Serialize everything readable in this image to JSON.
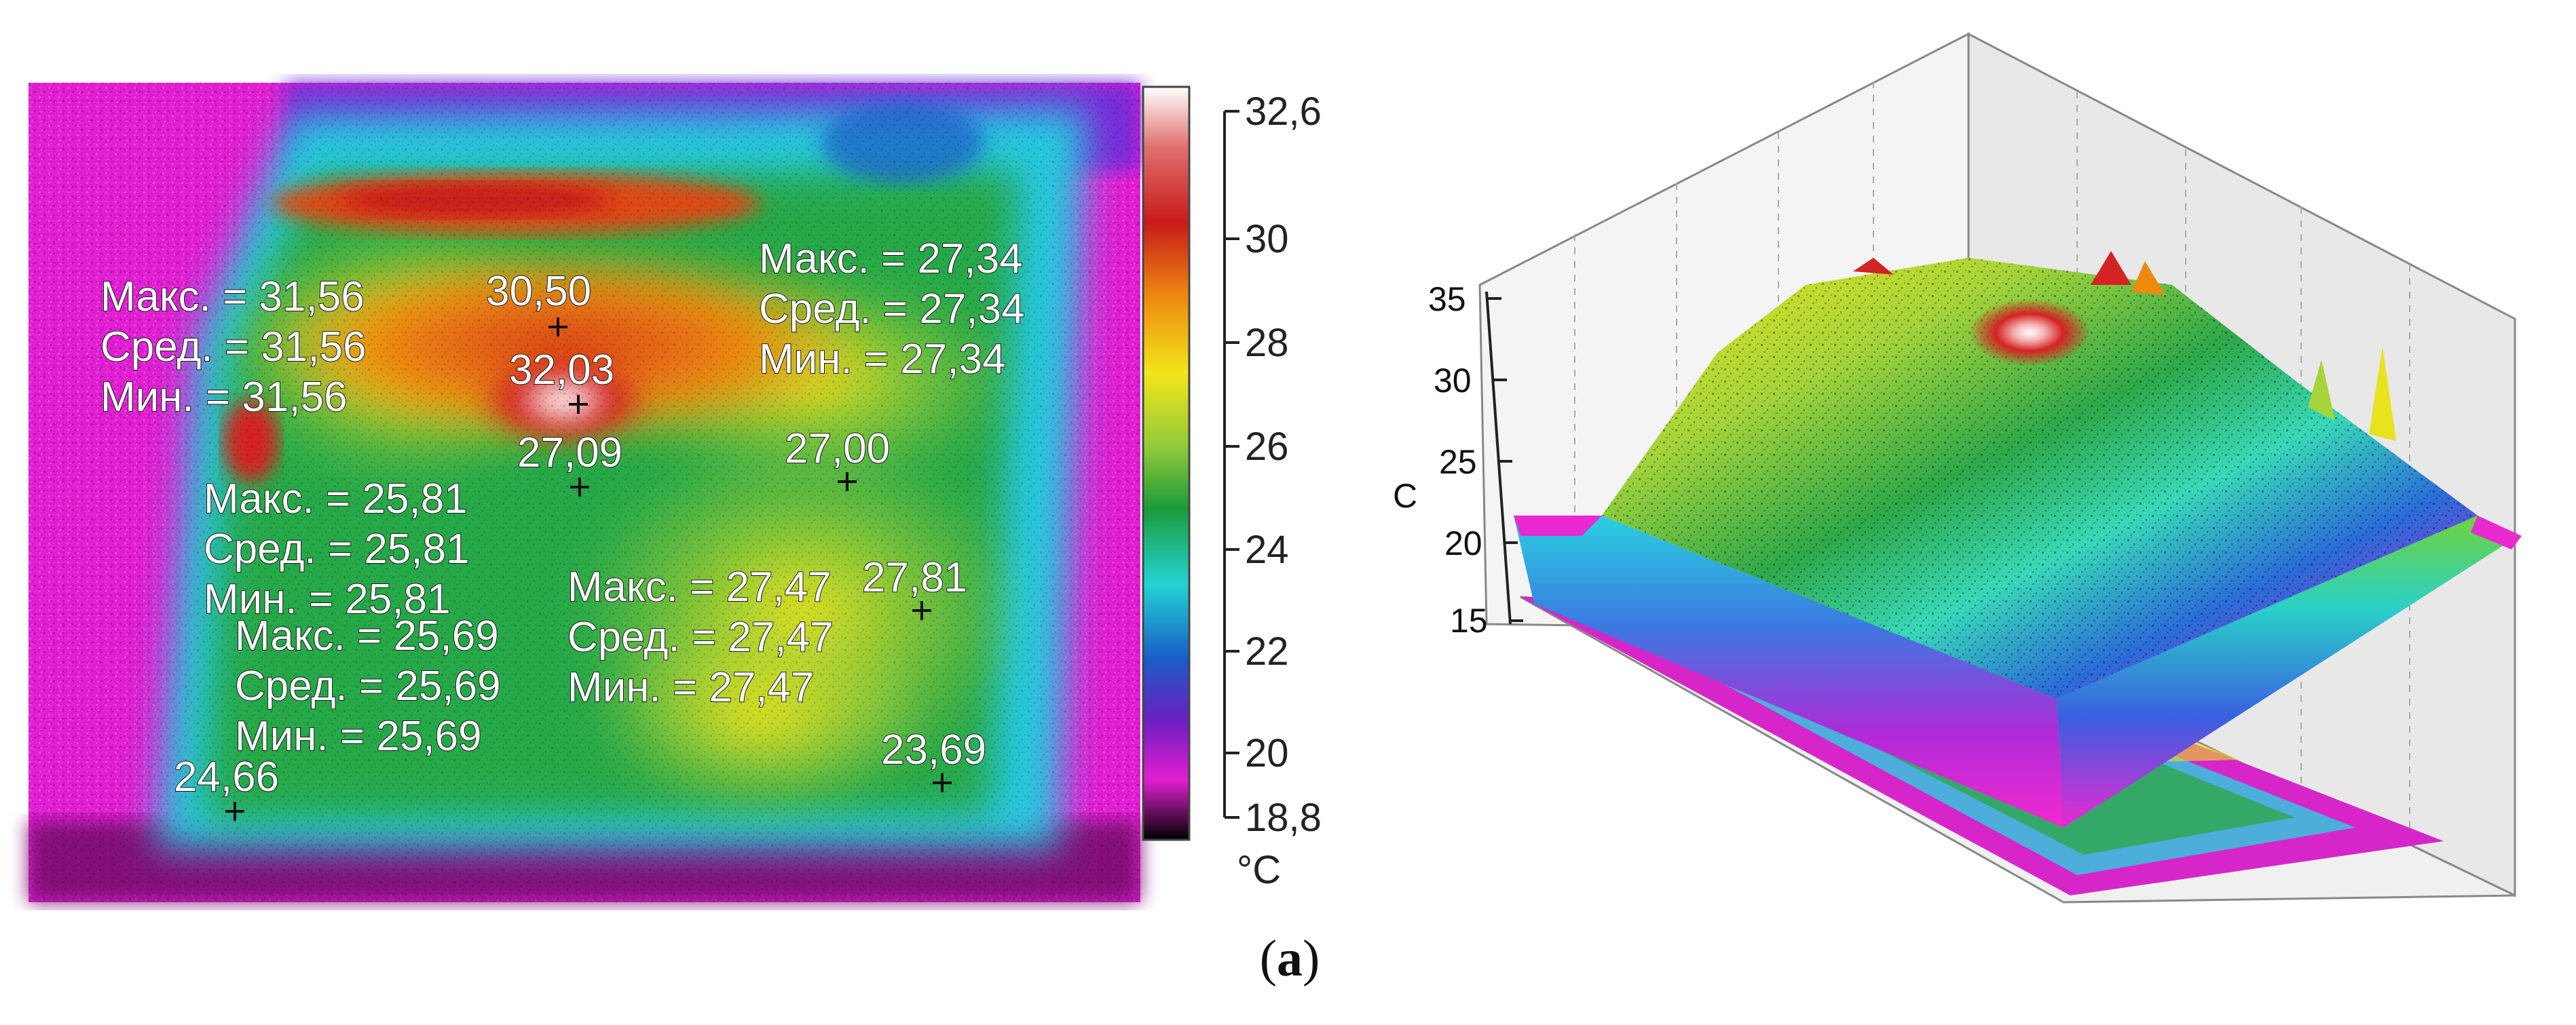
{
  "thermogram": {
    "measurements": [
      {
        "lines": [
          "Макс. = 31,56",
          "Сред. = 31,56",
          "Мин. = 31,56"
        ]
      },
      {
        "lines": [
          "Макс. = 27,34",
          "Сред. = 27,34",
          "Мин. = 27,34"
        ]
      },
      {
        "lines": [
          "Макс. = 25,81",
          "Сред. = 25,81",
          "Мин. = 25,81"
        ]
      },
      {
        "lines": [
          "Макс. = 25,69",
          "Сред. = 25,69",
          "Мин. = 25,69"
        ]
      },
      {
        "lines": [
          "Макс. = 27,47",
          "Сред. = 27,47",
          "Мин. = 27,47"
        ]
      }
    ],
    "point_labels": [
      "30,50",
      "32,03",
      "27,09",
      "27,00",
      "27,81",
      "24,66",
      "23,69"
    ],
    "scale": {
      "ticks": [
        "32,6",
        "30",
        "28",
        "26",
        "24",
        "22",
        "20",
        "18,8"
      ],
      "unit": "°C"
    }
  },
  "surface_plot": {
    "z_ticks": [
      "35",
      "30",
      "25",
      "20",
      "15"
    ],
    "z_label": "C"
  },
  "caption": {
    "open": "(",
    "letter": "a",
    "close": ")"
  }
}
